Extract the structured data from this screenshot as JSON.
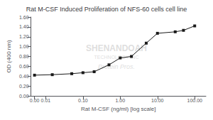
{
  "chart_data": {
    "type": "line",
    "title": "Rat M-CSF Induced Proliferation of NFS-60 cells cell line",
    "xlabel": "Rat M-CSF (ng/ml) [log scale]",
    "ylabel": "OD (400 nm)",
    "x": [
      0.005,
      0.015,
      0.05,
      0.1,
      0.2,
      0.5,
      1.0,
      2.0,
      5.0,
      10.0,
      30.0,
      50.0,
      100.0
    ],
    "values": [
      0.42,
      0.43,
      0.45,
      0.47,
      0.49,
      0.63,
      0.77,
      0.8,
      1.07,
      1.27,
      1.3,
      1.33,
      1.42
    ],
    "color": "#1a1a1a",
    "marker": "square",
    "log": "x",
    "xlim": [
      0.004,
      200.0
    ],
    "xticks": [
      {
        "value": 0.005,
        "label": "0.00"
      },
      0.01,
      {
        "value": 0.1,
        "label": "0.10"
      },
      {
        "value": 1,
        "label": "1.00"
      },
      {
        "value": 10,
        "label": "10.00"
      },
      {
        "value": 100,
        "label": "100.00"
      }
    ],
    "ylim": [
      0.0,
      1.6
    ],
    "yticks": [
      {
        "value": 0,
        "label": "0.00"
      },
      {
        "value": 0.2,
        "label": "0.20"
      },
      {
        "value": 0.4,
        "label": "0.40"
      },
      {
        "value": 0.6,
        "label": "0.60"
      },
      {
        "value": 0.8,
        "label": "0.80"
      },
      {
        "value": 1,
        "label": "1.00"
      },
      {
        "value": 1.2,
        "label": "1.20"
      },
      {
        "value": 1.4,
        "label": "1.40"
      },
      {
        "value": 1.6,
        "label": "1.60"
      }
    ],
    "grid": false,
    "annotations": [
      "SHENANDOAH",
      "TECHNOLOGY INC",
      "Protein Pros."
    ]
  }
}
